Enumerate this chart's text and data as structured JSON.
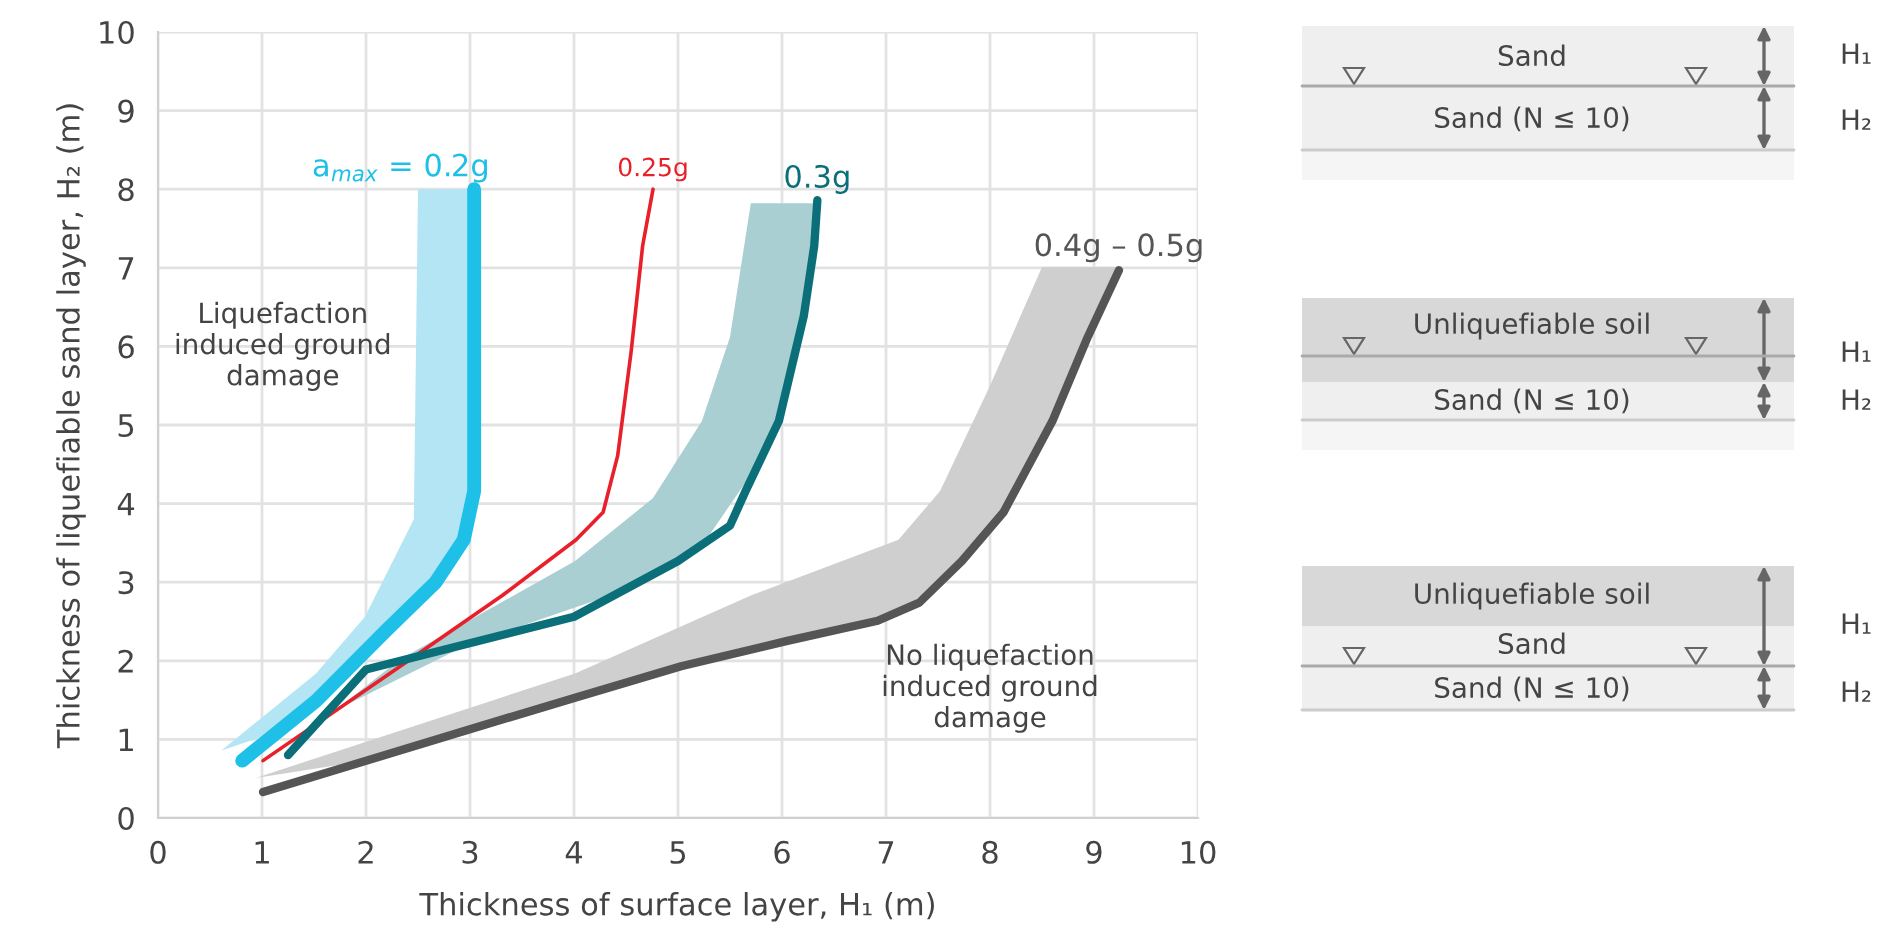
{
  "chart_data": {
    "type": "line",
    "xlabel": "Thickness of surface layer, H₁ (m)",
    "ylabel": "Thickness of liquefiable sand layer, H₂ (m)",
    "xlim": [
      0,
      10
    ],
    "ylim": [
      0,
      10
    ],
    "xticks": [
      0,
      1,
      2,
      3,
      4,
      5,
      6,
      7,
      8,
      9,
      10
    ],
    "yticks": [
      0,
      1,
      2,
      3,
      4,
      5,
      6,
      7,
      8,
      9,
      10
    ],
    "grid": true,
    "legend": false,
    "line_style": "solid",
    "series": [
      {
        "type": "area",
        "color": "#b3e5f5",
        "x": [
          0.61,
          1.52,
          1.99,
          2.46,
          2.5,
          3.08,
          3.08,
          3.0,
          2.85,
          2.45,
          1.85,
          1.15
        ],
        "values": [
          0.86,
          1.84,
          2.56,
          3.8,
          8.0,
          8.0,
          4.6,
          3.8,
          3.3,
          2.7,
          1.95,
          1.1
        ]
      },
      {
        "type": "area",
        "color": "#a9cfd3",
        "x": [
          1.2,
          2.33,
          4.01,
          4.76,
          5.23,
          5.5,
          5.7,
          6.34,
          6.33,
          6.27,
          6.1,
          5.82,
          5.25,
          4.5,
          3.0,
          1.6
        ],
        "values": [
          0.85,
          2.02,
          3.27,
          4.07,
          5.05,
          6.12,
          7.82,
          7.82,
          7.55,
          6.85,
          5.7,
          4.6,
          3.5,
          2.9,
          2.22,
          1.3
        ]
      },
      {
        "type": "area",
        "color": "#cfcfcf",
        "x": [
          0.94,
          4.01,
          5.7,
          7.12,
          7.52,
          8.0,
          8.5,
          9.24,
          9.1,
          8.77,
          8.37,
          7.93,
          7.52,
          7.12,
          6.5,
          5.5,
          4.5,
          3.5,
          2.0
        ],
        "values": [
          0.51,
          1.84,
          2.83,
          3.54,
          4.16,
          5.5,
          7.01,
          7.01,
          6.55,
          5.6,
          4.45,
          3.58,
          3.0,
          2.62,
          2.38,
          2.08,
          1.73,
          1.33,
          0.73
        ]
      },
      {
        "type": "line",
        "name": "a$_{max}$ = 0.2g",
        "color": "#1ec0e8",
        "x": [
          0.81,
          1.52,
          2.19,
          2.67,
          2.94,
          3.04,
          3.04,
          3.04
        ],
        "values": [
          0.73,
          1.49,
          2.38,
          3.0,
          3.54,
          4.16,
          5.94,
          8.0
        ]
      },
      {
        "type": "line",
        "name": "0.25g",
        "color": "#e8202a",
        "x": [
          1.01,
          2.33,
          3.31,
          4.02,
          4.28,
          4.42,
          4.55,
          4.66,
          4.76
        ],
        "values": [
          0.73,
          1.93,
          2.83,
          3.54,
          3.89,
          4.61,
          5.94,
          7.28,
          8.0
        ]
      },
      {
        "type": "line",
        "name": "0.3g",
        "color": "#0b6f79",
        "x": [
          1.25,
          2.0,
          4.0,
          5.0,
          5.5,
          5.65,
          5.97,
          6.21,
          6.31,
          6.34
        ],
        "values": [
          0.8,
          1.89,
          2.56,
          3.27,
          3.72,
          4.16,
          5.05,
          6.39,
          7.28,
          7.86
        ]
      },
      {
        "type": "line",
        "name": "0.4g – 0.5g",
        "color": "#555555",
        "x": [
          1.01,
          3.0,
          4.01,
          5.03,
          6.04,
          6.92,
          7.32,
          7.73,
          8.13,
          8.6,
          8.94,
          9.24
        ],
        "values": [
          0.33,
          1.13,
          1.53,
          1.93,
          2.25,
          2.51,
          2.74,
          3.27,
          3.89,
          5.05,
          6.12,
          6.97
        ]
      }
    ],
    "annotations": [
      "Liquefaction\ninduced ground\ndamage",
      "No liquefaction\ninduced ground\ndamage",
      "Sand",
      "Sand (N ≤ 10)",
      "H₁",
      "H₂",
      "Unliquefiable soil",
      "Sand (N ≤ 10)",
      "H₁",
      "H₂",
      "Unliquefiable soil",
      "Sand",
      "Sand (N ≤ 10)",
      "H₁",
      "H₂"
    ]
  }
}
